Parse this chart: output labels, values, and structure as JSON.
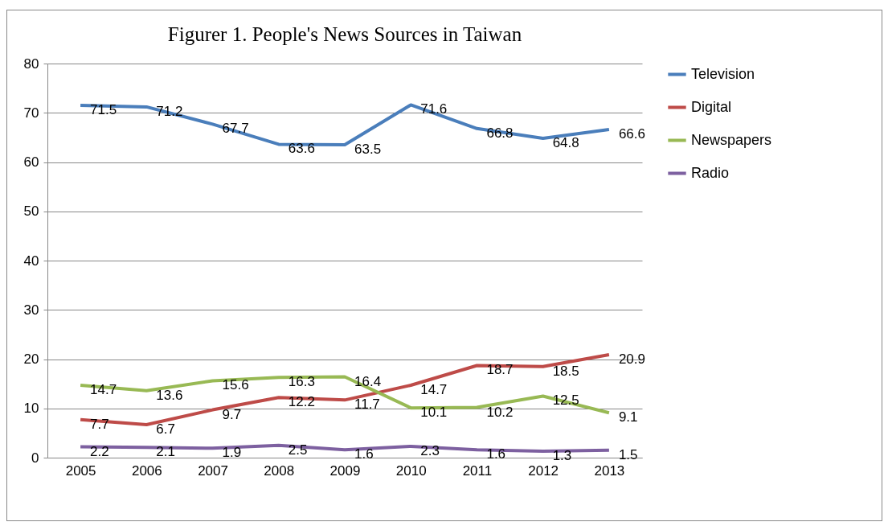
{
  "chart_data": {
    "type": "line",
    "title": "Figurer 1. People's News Sources in Taiwan",
    "categories": [
      "2005",
      "2006",
      "2007",
      "2008",
      "2009",
      "2010",
      "2011",
      "2012",
      "2013"
    ],
    "series": [
      {
        "name": "Television",
        "color": "#4a7ebb",
        "values": [
          71.5,
          71.2,
          67.7,
          63.6,
          63.5,
          71.6,
          66.8,
          64.8,
          66.6
        ]
      },
      {
        "name": "Digital",
        "color": "#be4b48",
        "values": [
          7.7,
          6.7,
          9.7,
          12.2,
          11.7,
          14.7,
          18.7,
          18.5,
          20.9
        ]
      },
      {
        "name": "Newspapers",
        "color": "#98b954",
        "values": [
          14.7,
          13.6,
          15.6,
          16.3,
          16.4,
          10.1,
          10.2,
          12.5,
          9.1
        ]
      },
      {
        "name": "Radio",
        "color": "#7d60a0",
        "values": [
          2.2,
          2.1,
          1.9,
          2.5,
          1.6,
          2.3,
          1.6,
          1.3,
          1.5
        ]
      }
    ],
    "ylim": [
      0,
      80
    ],
    "yticks": [
      0,
      10,
      20,
      30,
      40,
      50,
      60,
      70,
      80
    ],
    "grid": "y",
    "legend": "right",
    "data_labels": true
  }
}
